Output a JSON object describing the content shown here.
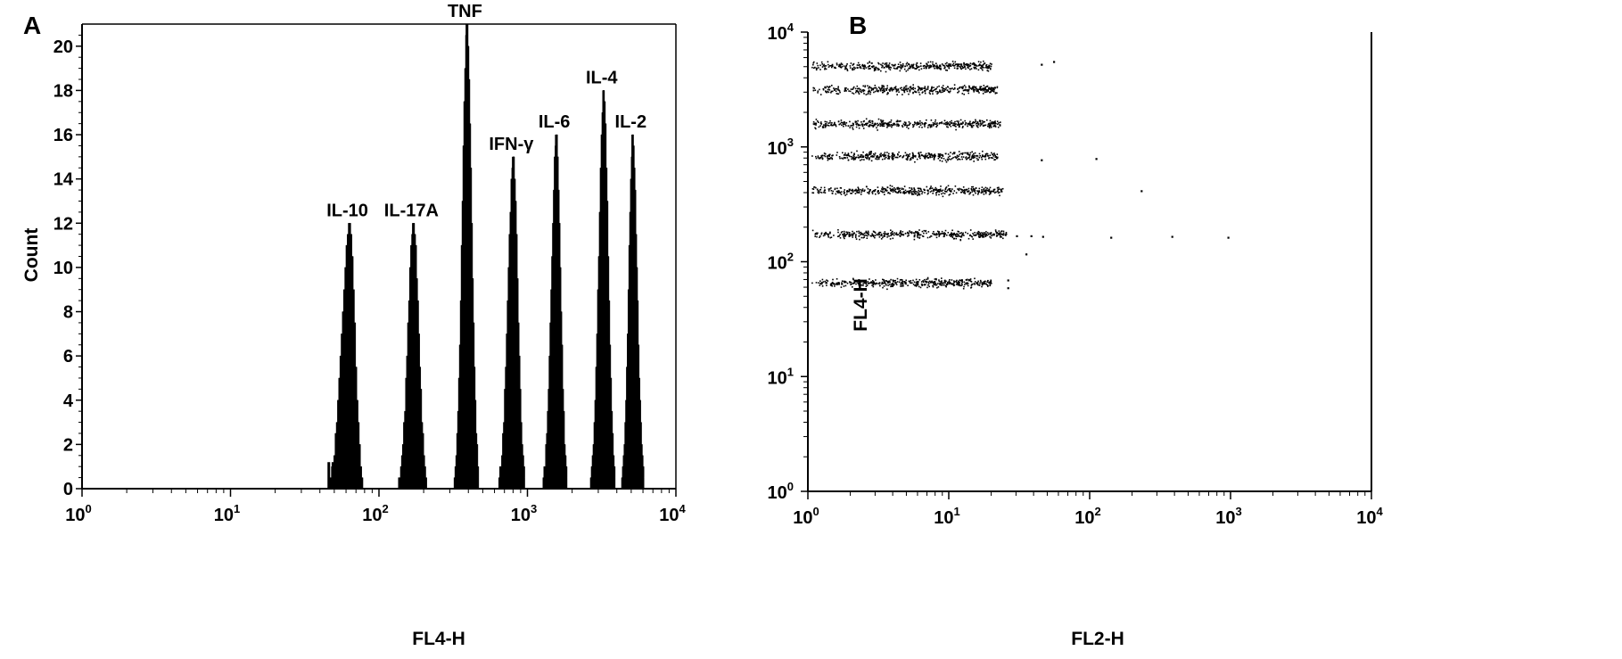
{
  "chart_data": [
    {
      "panel": "A",
      "type": "histogram",
      "xlabel": "FL4-H",
      "ylabel": "Count",
      "xscale": "log",
      "xlim": [
        1,
        10000
      ],
      "ylim": [
        0,
        21
      ],
      "x_ticks": [
        {
          "base": "10",
          "exp": "0"
        },
        {
          "base": "10",
          "exp": "1"
        },
        {
          "base": "10",
          "exp": "2"
        },
        {
          "base": "10",
          "exp": "3"
        },
        {
          "base": "10",
          "exp": "4"
        }
      ],
      "y_ticks": [
        "0",
        "2",
        "4",
        "6",
        "8",
        "10",
        "12",
        "14",
        "16",
        "18",
        "20"
      ],
      "peaks": [
        {
          "label": "IL-10",
          "center": 63,
          "height": 12,
          "lo": 46,
          "hi": 78
        },
        {
          "label": "IL-17A",
          "center": 170,
          "height": 12,
          "lo": 135,
          "hi": 210
        },
        {
          "label": "TNF",
          "center": 390,
          "height": 21,
          "lo": 320,
          "hi": 470
        },
        {
          "label": "IFN-γ",
          "center": 800,
          "height": 15,
          "lo": 640,
          "hi": 960
        },
        {
          "label": "IL-6",
          "center": 1560,
          "height": 16,
          "lo": 1270,
          "hi": 1850
        },
        {
          "label": "IL-4",
          "center": 3250,
          "height": 18,
          "lo": 2650,
          "hi": 3900
        },
        {
          "label": "IL-2",
          "center": 5100,
          "height": 16,
          "lo": 4300,
          "hi": 6100
        }
      ]
    },
    {
      "panel": "B",
      "type": "scatter",
      "xlabel": "FL2-H",
      "ylabel": "FL4-H",
      "xscale": "log",
      "yscale": "log",
      "xlim": [
        1,
        10000
      ],
      "ylim": [
        1,
        10000
      ],
      "x_ticks": [
        {
          "base": "10",
          "exp": "0"
        },
        {
          "base": "10",
          "exp": "1"
        },
        {
          "base": "10",
          "exp": "2"
        },
        {
          "base": "10",
          "exp": "3"
        },
        {
          "base": "10",
          "exp": "4"
        }
      ],
      "y_ticks": [
        {
          "base": "10",
          "exp": "0"
        },
        {
          "base": "10",
          "exp": "1"
        },
        {
          "base": "10",
          "exp": "2"
        },
        {
          "base": "10",
          "exp": "3"
        },
        {
          "base": "10",
          "exp": "4"
        }
      ],
      "clusters": [
        {
          "fl4": 5100,
          "fl2_min": 1.0,
          "fl2_max": 20
        },
        {
          "fl4": 3200,
          "fl2_min": 1.0,
          "fl2_max": 22
        },
        {
          "fl4": 1600,
          "fl2_min": 1.0,
          "fl2_max": 23
        },
        {
          "fl4": 840,
          "fl2_min": 1.0,
          "fl2_max": 22
        },
        {
          "fl4": 420,
          "fl2_min": 1.0,
          "fl2_max": 24
        },
        {
          "fl4": 175,
          "fl2_min": 1.0,
          "fl2_max": 26
        },
        {
          "fl4": 66,
          "fl2_min": 1.0,
          "fl2_max": 20
        }
      ],
      "outliers": [
        {
          "x": 45,
          "y": 5300
        },
        {
          "x": 55,
          "y": 5600
        },
        {
          "x": 45,
          "y": 780
        },
        {
          "x": 110,
          "y": 800
        },
        {
          "x": 230,
          "y": 420
        },
        {
          "x": 30,
          "y": 170
        },
        {
          "x": 38,
          "y": 170
        },
        {
          "x": 46,
          "y": 168
        },
        {
          "x": 140,
          "y": 165
        },
        {
          "x": 380,
          "y": 168
        },
        {
          "x": 950,
          "y": 165
        },
        {
          "x": 35,
          "y": 118
        },
        {
          "x": 26,
          "y": 70
        },
        {
          "x": 26,
          "y": 60
        }
      ]
    }
  ],
  "labels": {
    "panel_a": "A",
    "panel_b": "B"
  }
}
